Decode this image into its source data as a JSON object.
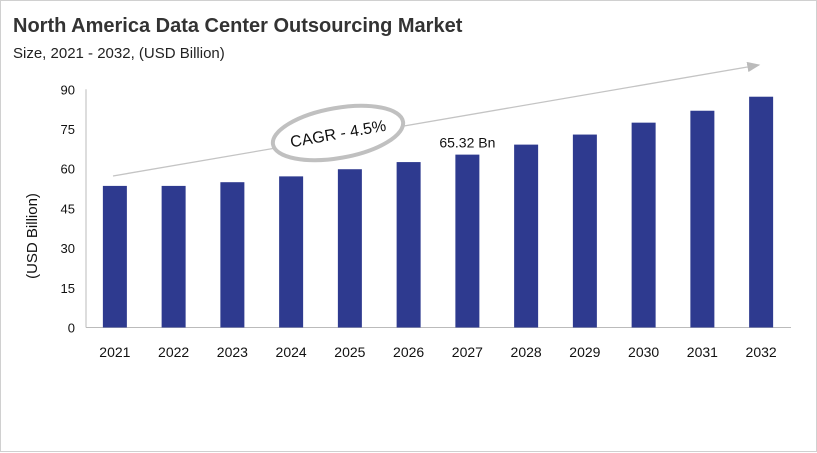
{
  "chart_data": {
    "type": "bar",
    "title": "North America Data Center Outsourcing Market",
    "subtitle": "Size, 2021 - 2032, (USD Billion)",
    "xlabel": "",
    "ylabel": "(USD Billion)",
    "ylim": [
      0,
      90
    ],
    "yticks": [
      0,
      15,
      30,
      45,
      60,
      75,
      90
    ],
    "categories": [
      "2021",
      "2022",
      "2023",
      "2024",
      "2025",
      "2026",
      "2027",
      "2028",
      "2029",
      "2030",
      "2031",
      "2032"
    ],
    "values": [
      53.5,
      53.5,
      54.9,
      57.1,
      59.8,
      62.5,
      65.32,
      69.1,
      72.9,
      77.4,
      81.9,
      87.2
    ],
    "bar_color": "#2e3a8f",
    "grid": false,
    "annotations": {
      "data_label": "65.32 Bn",
      "data_label_category": "2027",
      "cagr": "CAGR - 4.5%"
    }
  }
}
